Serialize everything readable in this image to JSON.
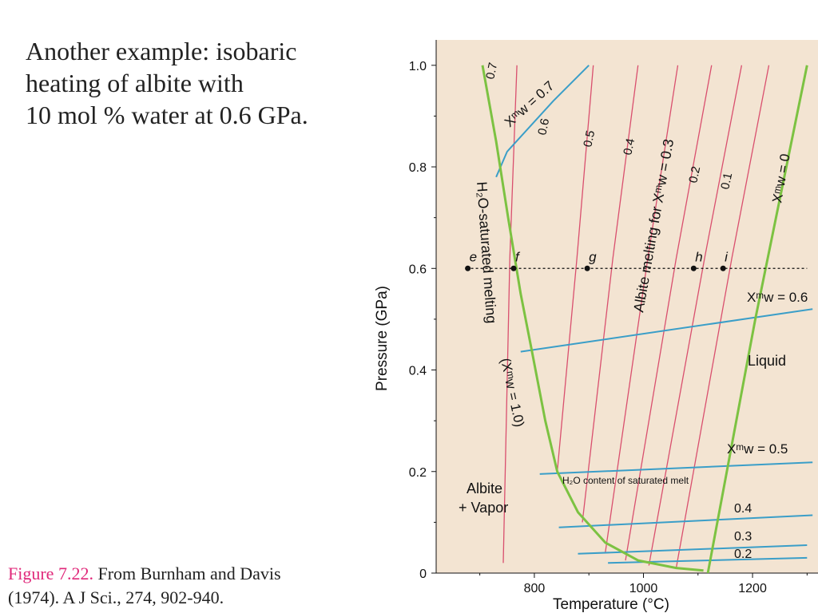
{
  "slide": {
    "title_lines": [
      "Another example: isobaric",
      "heating of albite with",
      "10 mol % water at 0.6 GPa."
    ],
    "caption_figure": "Figure 7.22.",
    "caption_source_line1": " From Burnham and Davis",
    "caption_source_line2": "(1974). A J Sci., 274, 902-940."
  },
  "chart_data": {
    "type": "line",
    "xlabel": "Temperature (°C)",
    "ylabel": "Pressure (GPa)",
    "xlim": [
      620,
      1320
    ],
    "ylim": [
      0,
      1.05
    ],
    "x_ticks": [
      800,
      1000,
      1200
    ],
    "y_ticks": [
      0,
      0.2,
      0.4,
      0.6,
      0.8,
      1.0
    ],
    "y_tick_labels": [
      "0",
      "0.2",
      "0.4",
      "0.6",
      "0.8",
      "1.0"
    ],
    "colors": {
      "background": "#f3e4d2",
      "green": "#7cc242",
      "red": "#d94f6e",
      "blue": "#3a9ec8",
      "dash": "#111111"
    },
    "curves": [
      {
        "id": "h2o-saturated-solidus",
        "color": "green",
        "points": [
          [
            705,
            1.0
          ],
          [
            730,
            0.85
          ],
          [
            752,
            0.7
          ],
          [
            775,
            0.55
          ],
          [
            795,
            0.44
          ],
          [
            820,
            0.3
          ],
          [
            842,
            0.2
          ],
          [
            880,
            0.12
          ],
          [
            930,
            0.06
          ],
          [
            990,
            0.025
          ],
          [
            1060,
            0.01
          ],
          [
            1110,
            0.005
          ]
        ]
      },
      {
        "id": "dry-melting",
        "color": "green",
        "points": [
          [
            1118,
            0.0
          ],
          [
            1205,
            0.5
          ],
          [
            1300,
            1.0
          ]
        ]
      }
    ],
    "red_isopleths": [
      {
        "label": "0.7",
        "points": [
          [
            743,
            0.02
          ],
          [
            755,
            0.62
          ],
          [
            768,
            1.0
          ]
        ]
      },
      {
        "label": "0.6",
        "points": [
          [
            842,
            0.2
          ],
          [
            878,
            0.62
          ],
          [
            908,
            1.0
          ]
        ]
      },
      {
        "label": "0.5",
        "points": [
          [
            888,
            0.1
          ],
          [
            944,
            0.62
          ],
          [
            990,
            1.0
          ]
        ]
      },
      {
        "label": "0.4",
        "points": [
          [
            930,
            0.04
          ],
          [
            1008,
            0.62
          ],
          [
            1063,
            1.0
          ]
        ]
      },
      {
        "label": "0.3",
        "points": [
          [
            967,
            0.025
          ],
          [
            1060,
            0.62
          ],
          [
            1125,
            1.0
          ]
        ]
      },
      {
        "label": "0.2",
        "points": [
          [
            1010,
            0.015
          ],
          [
            1112,
            0.62
          ],
          [
            1180,
            1.0
          ]
        ]
      },
      {
        "label": "0.1",
        "points": [
          [
            1060,
            0.01
          ],
          [
            1162,
            0.62
          ],
          [
            1230,
            1.0
          ]
        ]
      }
    ],
    "red_labels": [
      "0.7",
      "0.6",
      "0.5",
      "0.4",
      "0.3",
      "0.2",
      "0.1"
    ],
    "blue_isopleths": [
      {
        "label": "0.7",
        "points": [
          [
            730,
            0.78
          ],
          [
            750,
            0.83
          ],
          [
            835,
            0.93
          ],
          [
            900,
            1.0
          ]
        ]
      },
      {
        "label": "0.6",
        "points": [
          [
            775,
            0.436
          ],
          [
            1310,
            0.52
          ]
        ]
      },
      {
        "label": "0.5",
        "points": [
          [
            810,
            0.195
          ],
          [
            1310,
            0.218
          ]
        ]
      },
      {
        "label": "0.4",
        "points": [
          [
            845,
            0.09
          ],
          [
            1310,
            0.114
          ]
        ]
      },
      {
        "label": "0.3",
        "points": [
          [
            880,
            0.038
          ],
          [
            1300,
            0.055
          ]
        ]
      },
      {
        "label": "0.2",
        "points": [
          [
            935,
            0.02
          ],
          [
            1300,
            0.03
          ]
        ]
      }
    ],
    "isobar": {
      "pressure": 0.6,
      "x_range": [
        675,
        1300
      ]
    },
    "points": [
      {
        "label": "e",
        "x": 678,
        "y": 0.6
      },
      {
        "label": "f",
        "x": 762,
        "y": 0.6
      },
      {
        "label": "g",
        "x": 897,
        "y": 0.6
      },
      {
        "label": "h",
        "x": 1092,
        "y": 0.6
      },
      {
        "label": "i",
        "x": 1146,
        "y": 0.6
      }
    ],
    "annotations": {
      "h2o_saturated": "H₂O-saturated melting",
      "xw10": "(Xᵐw = 1.0)",
      "albite_melting": "Albite melting for Xᵐw = 0.3",
      "xw0": "Xᵐw = 0",
      "xw07": "Xᵐw = 0.7",
      "xw06": "Xᵐw = 0.6",
      "xw05": "Xᵐw = 0.5",
      "h2o_content": "H₂O content of saturated melt",
      "liquid": "Liquid",
      "albite": "Albite",
      "vapor": "+ Vapor",
      "l04": "0.4",
      "l03": "0.3",
      "l02": "0.2"
    }
  }
}
